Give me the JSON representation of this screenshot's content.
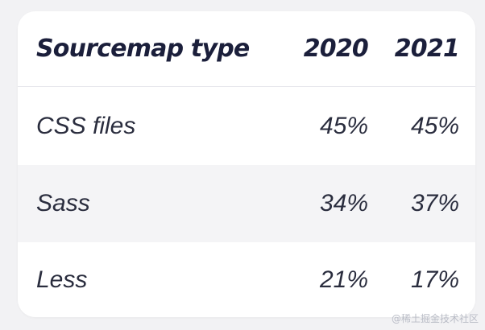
{
  "table": {
    "headers": [
      "Sourcemap type",
      "2020",
      "2021"
    ],
    "rows": [
      {
        "type": "CSS files",
        "y2020": "45%",
        "y2021": "45%"
      },
      {
        "type": "Sass",
        "y2020": "34%",
        "y2021": "37%"
      },
      {
        "type": "Less",
        "y2020": "21%",
        "y2021": "17%"
      }
    ]
  },
  "watermark": "@稀土掘金技术社区",
  "colors": {
    "background": "#f2f2f4",
    "card": "#ffffff",
    "header_text": "#1b1f3b",
    "body_text": "#2a2d3e",
    "stripe": "#f4f4f6"
  }
}
